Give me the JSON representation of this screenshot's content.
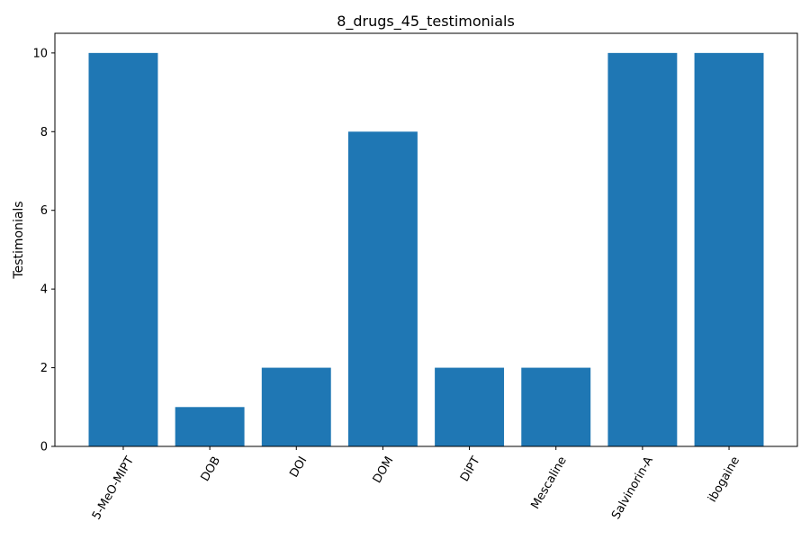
{
  "chart_data": {
    "type": "bar",
    "title": "8_drugs_45_testimonials",
    "xlabel": "",
    "ylabel": "Testimonials",
    "categories": [
      "5-MeO-MIPT",
      "DOB",
      "DOI",
      "DOM",
      "DiPT",
      "Mescaline",
      "Salvinorin-A",
      "ibogaine"
    ],
    "values": [
      10,
      1,
      2,
      8,
      2,
      2,
      10,
      10
    ],
    "ylim": [
      0,
      10.5
    ],
    "yticks": [
      0,
      2,
      4,
      6,
      8,
      10
    ],
    "grid": false,
    "bar_color": "#1f77b4",
    "x_tick_rotation_deg": 60
  }
}
